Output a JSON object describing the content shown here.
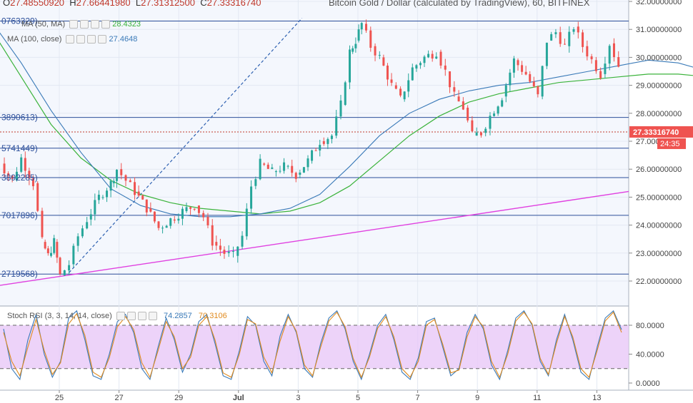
{
  "header": {
    "title_fragment": "Bitcoin Gold / Dollar (calculated by TradingView), 60, BITFINEX",
    "ohlc": [
      {
        "key": "O",
        "value": "27.48550920"
      },
      {
        "key": "H",
        "value": "27.66441980"
      },
      {
        "key": "L",
        "value": "27.31312500"
      },
      {
        "key": "C",
        "value": "27.33316740"
      }
    ]
  },
  "indicators": {
    "ma50": {
      "label": "MA (50, MA)",
      "value": "28.4323",
      "color": "#3bb33b"
    },
    "ma100": {
      "label": "MA (100, close)",
      "value": "27.4648",
      "color": "#3a7ab8"
    },
    "stoch": {
      "label": "Stoch RSI (3, 3, 14, 14, close)",
      "k_value": "74.2857",
      "d_value": "70.3106",
      "k_color": "#3a7ab8",
      "d_color": "#e08a1e"
    }
  },
  "price_axis": {
    "ticks": [
      "32.00000000",
      "31.00000000",
      "30.00000000",
      "29.00000000",
      "28.00000000",
      "27.00000000",
      "26.00000000",
      "25.00000000",
      "24.00000000",
      "23.00000000",
      "22.00000000"
    ],
    "current_price": "27.33316740",
    "countdown": "24:35"
  },
  "stoch_axis": {
    "ticks": [
      "80.0000",
      "40.0000",
      "0.0000"
    ]
  },
  "time_axis": {
    "ticks": [
      "25",
      "27",
      "29",
      "Jul",
      "3",
      "5",
      "7",
      "9",
      "11",
      "13"
    ]
  },
  "level_labels": [
    "0763329)",
    "3890613)",
    "5741449)",
    "3892285)",
    "7017896)",
    "2719568)"
  ],
  "colors": {
    "up": "#26a69a",
    "down": "#ef5350",
    "support_line": "#e040e0",
    "level_line": "#2c4f9a",
    "band_fill": "#e8c8f8"
  },
  "chart_data": [
    {
      "type": "candlestick",
      "title": "Bitcoin Gold / Dollar, 60",
      "ylim": [
        21.6,
        32.1
      ],
      "levels": [
        31.3,
        27.85,
        26.75,
        25.7,
        24.35,
        22.25
      ],
      "support_trendline": [
        [
          22.0,
          21.8
        ],
        [
          28.9,
          25.1
        ]
      ],
      "dashed_trendline": [
        [
          24.6,
          22.3
        ],
        [
          32.4,
          31.4
        ]
      ],
      "close_path_days": [
        [
          22.0,
          26.0
        ],
        [
          22.3,
          26.2
        ],
        [
          22.7,
          25.6
        ],
        [
          23.0,
          26.4
        ],
        [
          23.4,
          25.5
        ],
        [
          23.7,
          23.4
        ],
        [
          23.9,
          22.9
        ],
        [
          24.1,
          23.4
        ],
        [
          24.3,
          22.2
        ],
        [
          24.6,
          22.6
        ],
        [
          24.9,
          23.6
        ],
        [
          25.2,
          24.2
        ],
        [
          25.6,
          25.0
        ],
        [
          26.0,
          25.5
        ],
        [
          26.2,
          26.0
        ],
        [
          26.5,
          25.6
        ],
        [
          26.8,
          25.2
        ],
        [
          27.2,
          24.6
        ],
        [
          27.6,
          23.9
        ],
        [
          28.0,
          24.2
        ],
        [
          28.4,
          24.5
        ],
        [
          28.8,
          24.7
        ],
        [
          29.1,
          24.3
        ],
        [
          29.4,
          23.4
        ],
        [
          29.8,
          23.0
        ],
        [
          30.1,
          22.9
        ],
        [
          30.4,
          23.6
        ],
        [
          30.7,
          25.4
        ],
        [
          31.0,
          26.2
        ],
        [
          31.4,
          25.9
        ],
        [
          31.8,
          26.1
        ],
        [
          32.2,
          25.8
        ],
        [
          32.6,
          26.3
        ],
        [
          33.0,
          27.0
        ],
        [
          33.4,
          27.2
        ],
        [
          33.7,
          28.3
        ],
        [
          34.0,
          30.2
        ],
        [
          34.2,
          30.6
        ],
        [
          34.4,
          31.2
        ],
        [
          34.7,
          30.4
        ],
        [
          35.0,
          30.0
        ],
        [
          35.4,
          29.0
        ],
        [
          35.7,
          28.5
        ],
        [
          36.1,
          29.6
        ],
        [
          36.5,
          30.0
        ],
        [
          36.9,
          30.2
        ],
        [
          37.2,
          29.5
        ],
        [
          37.5,
          28.6
        ],
        [
          37.8,
          28.2
        ],
        [
          38.1,
          27.2
        ],
        [
          38.4,
          27.3
        ],
        [
          38.7,
          27.9
        ],
        [
          39.1,
          28.6
        ],
        [
          39.5,
          29.9
        ],
        [
          39.9,
          29.4
        ],
        [
          40.3,
          28.6
        ],
        [
          40.6,
          30.6
        ],
        [
          40.9,
          30.9
        ],
        [
          41.2,
          30.4
        ],
        [
          41.5,
          31.1
        ],
        [
          41.8,
          30.4
        ],
        [
          42.1,
          29.9
        ],
        [
          42.4,
          29.4
        ],
        [
          42.7,
          30.5
        ],
        [
          43.0,
          29.7
        ],
        [
          43.3,
          28.6
        ],
        [
          43.6,
          27.6
        ],
        [
          43.9,
          27.3
        ],
        [
          44.2,
          27.0
        ],
        [
          44.5,
          27.6
        ],
        [
          44.8,
          27.4
        ],
        [
          45.1,
          27.0
        ],
        [
          45.4,
          26.9
        ],
        [
          45.7,
          27.1
        ],
        [
          46.0,
          26.9
        ],
        [
          46.3,
          26.5
        ],
        [
          46.6,
          25.6
        ],
        [
          46.9,
          25.4
        ],
        [
          47.2,
          25.5
        ],
        [
          47.5,
          25.2
        ],
        [
          47.8,
          25.3
        ],
        [
          48.0,
          25.9
        ],
        [
          48.2,
          26.9
        ],
        [
          48.5,
          27.7
        ],
        [
          48.7,
          27.3
        ]
      ],
      "ma50_path_days": [
        [
          22.0,
          31.0
        ],
        [
          23.0,
          29.3
        ],
        [
          24.0,
          27.6
        ],
        [
          25.0,
          26.4
        ],
        [
          26.0,
          25.6
        ],
        [
          27.0,
          25.1
        ],
        [
          28.0,
          24.8
        ],
        [
          29.0,
          24.6
        ],
        [
          30.0,
          24.5
        ],
        [
          31.0,
          24.4
        ],
        [
          32.0,
          24.5
        ],
        [
          33.0,
          24.8
        ],
        [
          34.0,
          25.4
        ],
        [
          35.0,
          26.3
        ],
        [
          36.0,
          27.2
        ],
        [
          37.0,
          27.9
        ],
        [
          38.0,
          28.4
        ],
        [
          39.0,
          28.7
        ],
        [
          40.0,
          28.9
        ],
        [
          41.0,
          29.1
        ],
        [
          42.0,
          29.2
        ],
        [
          43.0,
          29.3
        ],
        [
          44.0,
          29.4
        ],
        [
          45.0,
          29.4
        ],
        [
          46.0,
          29.3
        ],
        [
          47.0,
          29.1
        ],
        [
          48.0,
          28.8
        ],
        [
          49.0,
          28.4
        ]
      ],
      "ma100_path_days": [
        [
          22.0,
          31.3
        ],
        [
          23.0,
          29.8
        ],
        [
          24.0,
          28.1
        ],
        [
          25.0,
          26.6
        ],
        [
          26.0,
          25.3
        ],
        [
          27.0,
          24.7
        ],
        [
          28.0,
          24.4
        ],
        [
          29.0,
          24.3
        ],
        [
          30.0,
          24.3
        ],
        [
          31.0,
          24.4
        ],
        [
          32.0,
          24.6
        ],
        [
          33.0,
          25.1
        ],
        [
          34.0,
          26.1
        ],
        [
          35.0,
          27.2
        ],
        [
          36.0,
          28.0
        ],
        [
          37.0,
          28.5
        ],
        [
          38.0,
          28.8
        ],
        [
          39.0,
          29.0
        ],
        [
          40.0,
          29.1
        ],
        [
          41.0,
          29.3
        ],
        [
          42.0,
          29.5
        ],
        [
          43.0,
          29.7
        ],
        [
          44.0,
          29.9
        ],
        [
          45.0,
          29.8
        ],
        [
          46.0,
          29.5
        ],
        [
          47.0,
          28.8
        ],
        [
          48.0,
          28.1
        ],
        [
          48.8,
          27.6
        ]
      ]
    },
    {
      "type": "line",
      "title": "Stoch RSI (3, 3, 14, 14, close)",
      "ylim": [
        -5,
        105
      ],
      "bands": [
        20,
        80
      ],
      "series": [
        {
          "name": "K",
          "values": [
            75,
            20,
            5,
            60,
            95,
            40,
            8,
            30,
            90,
            100,
            60,
            10,
            5,
            40,
            85,
            95,
            70,
            20,
            5,
            50,
            90,
            60,
            15,
            40,
            85,
            95,
            55,
            10,
            5,
            45,
            92,
            80,
            30,
            10,
            65,
            95,
            70,
            20,
            8,
            55,
            90,
            100,
            75,
            30,
            5,
            40,
            80,
            95,
            60,
            15,
            5,
            35,
            85,
            90,
            50,
            10,
            20,
            70,
            95,
            75,
            25,
            5,
            45,
            90,
            100,
            80,
            30,
            10,
            60,
            95,
            60,
            15,
            5,
            50,
            90,
            100,
            74
          ]
        },
        {
          "name": "D",
          "values": [
            70,
            30,
            10,
            50,
            88,
            45,
            12,
            28,
            82,
            96,
            66,
            15,
            8,
            35,
            78,
            92,
            74,
            28,
            8,
            45,
            85,
            64,
            20,
            36,
            80,
            92,
            60,
            14,
            8,
            40,
            88,
            82,
            36,
            14,
            58,
            92,
            72,
            25,
            10,
            50,
            86,
            98,
            78,
            34,
            8,
            36,
            76,
            92,
            64,
            20,
            8,
            30,
            80,
            88,
            54,
            14,
            18,
            64,
            92,
            78,
            30,
            8,
            40,
            86,
            98,
            82,
            34,
            12,
            55,
            92,
            64,
            20,
            8,
            45,
            86,
            98,
            70
          ]
        }
      ]
    }
  ]
}
